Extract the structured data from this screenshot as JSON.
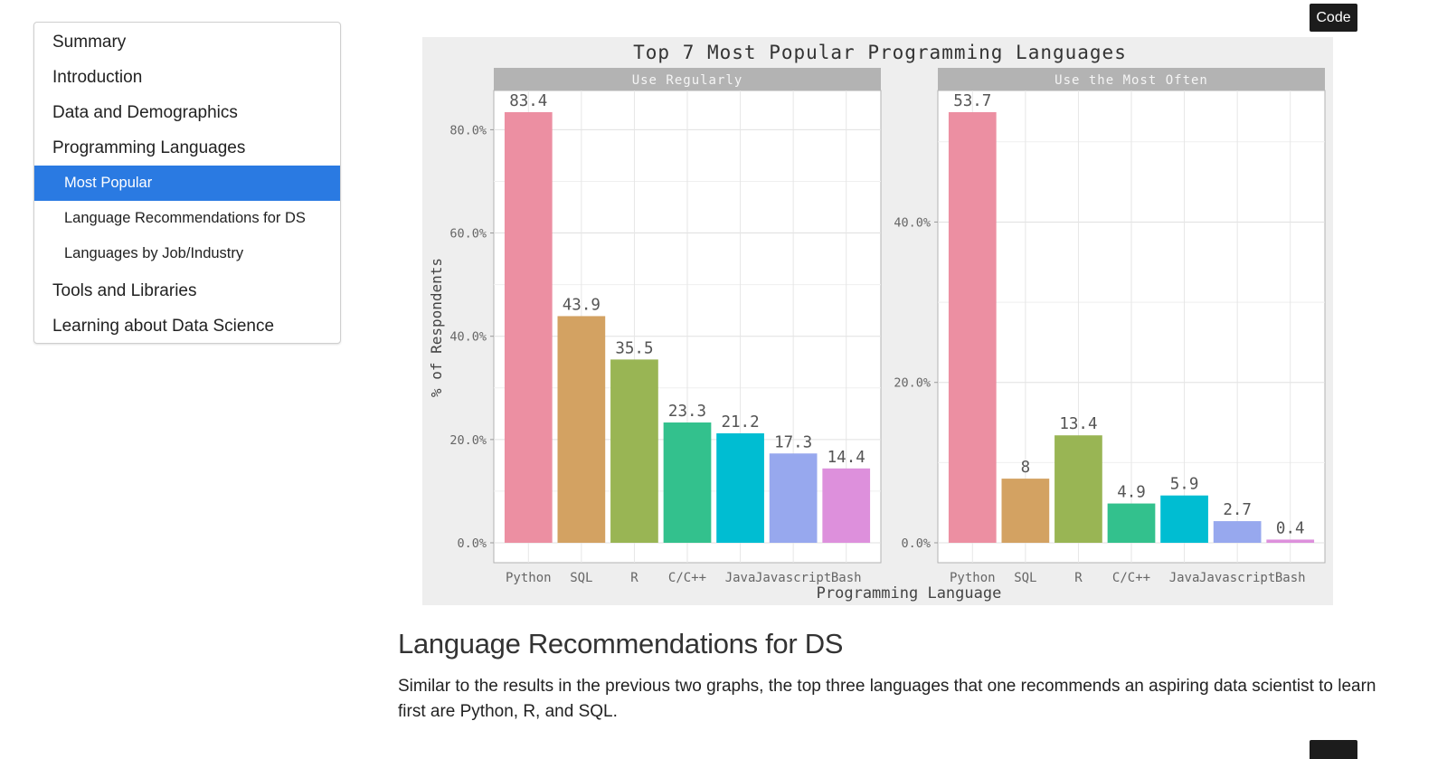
{
  "toc": {
    "items": [
      {
        "label": "Summary",
        "level": 1,
        "active": false
      },
      {
        "label": "Introduction",
        "level": 1,
        "active": false
      },
      {
        "label": "Data and Demographics",
        "level": 1,
        "active": false
      },
      {
        "label": "Programming Languages",
        "level": 1,
        "active": false
      },
      {
        "label": "Most Popular",
        "level": 2,
        "active": true
      },
      {
        "label": "Language Recommendations for DS",
        "level": 2,
        "active": false
      },
      {
        "label": "Languages by Job/Industry",
        "level": 2,
        "active": false
      },
      {
        "label": "Tools and Libraries",
        "level": 1,
        "active": false
      },
      {
        "label": "Learning about Data Science",
        "level": 1,
        "active": false
      }
    ],
    "active_color": "#2a7ae2"
  },
  "code_button": {
    "label": "Code"
  },
  "chart_data": {
    "type": "bar",
    "title": "Top 7 Most Popular Programming Languages",
    "xlabel": "Programming Language",
    "ylabel": "% of Respondents",
    "categories": [
      "Python",
      "SQL",
      "R",
      "C/C++",
      "Java",
      "Javascript",
      "Bash"
    ],
    "colors": [
      "#ec8fa2",
      "#d3a262",
      "#99b554",
      "#33c18d",
      "#00bdd2",
      "#97a8ee",
      "#dd90dc"
    ],
    "grid": true,
    "panel_background": "#ffffff",
    "plot_background": "#eeeeee",
    "strip_color": "#b3b3b3",
    "facets": [
      {
        "strip": "Use Regularly",
        "values": [
          83.4,
          43.9,
          35.5,
          23.3,
          21.2,
          17.3,
          14.4
        ],
        "value_labels": [
          "83.4",
          "43.9",
          "35.5",
          "23.3",
          "21.2",
          "17.3",
          "14.4"
        ],
        "ylim": [
          0,
          83.4
        ],
        "yticks": [
          0,
          20,
          40,
          60,
          80
        ],
        "ytick_labels": [
          "0.0%",
          "20.0%",
          "40.0%",
          "60.0%",
          "80.0%"
        ]
      },
      {
        "strip": "Use the Most Often",
        "values": [
          53.7,
          8,
          13.4,
          4.9,
          5.9,
          2.7,
          0.4
        ],
        "value_labels": [
          "53.7",
          "8",
          "13.4",
          "4.9",
          "5.9",
          "2.7",
          "0.4"
        ],
        "ylim": [
          0,
          53.7
        ],
        "yticks": [
          0,
          20,
          40
        ],
        "ytick_labels": [
          "0.0%",
          "20.0%",
          "40.0%"
        ]
      }
    ]
  },
  "section": {
    "title": "Language Recommendations for DS",
    "paragraph": "Similar to the results in the previous two graphs, the top three languages that one recommends an aspiring data scientist to learn first are Python, R, and SQL."
  }
}
